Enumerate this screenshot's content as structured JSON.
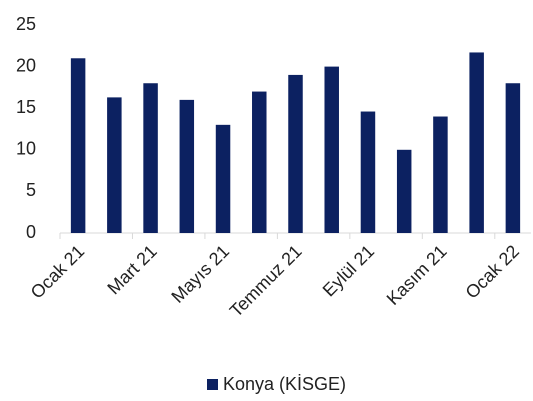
{
  "chart_data": {
    "type": "bar",
    "categories": [
      "Ocak 21",
      null,
      "Mart 21",
      null,
      "Mayıs 21",
      null,
      "Temmuz 21",
      null,
      "Eylül 21",
      null,
      "Kasım 21",
      null,
      "Ocak 22"
    ],
    "series": [
      {
        "name": "Konya (KİSGE)",
        "color": "#0c2161",
        "values": [
          21,
          16.3,
          18,
          16,
          13,
          17,
          19,
          20,
          14.6,
          10,
          14,
          21.7,
          18
        ]
      }
    ],
    "ylim": [
      0,
      25
    ],
    "yticks": [
      0,
      5,
      10,
      15,
      20,
      25
    ],
    "grid": false,
    "legend": "bottom"
  }
}
